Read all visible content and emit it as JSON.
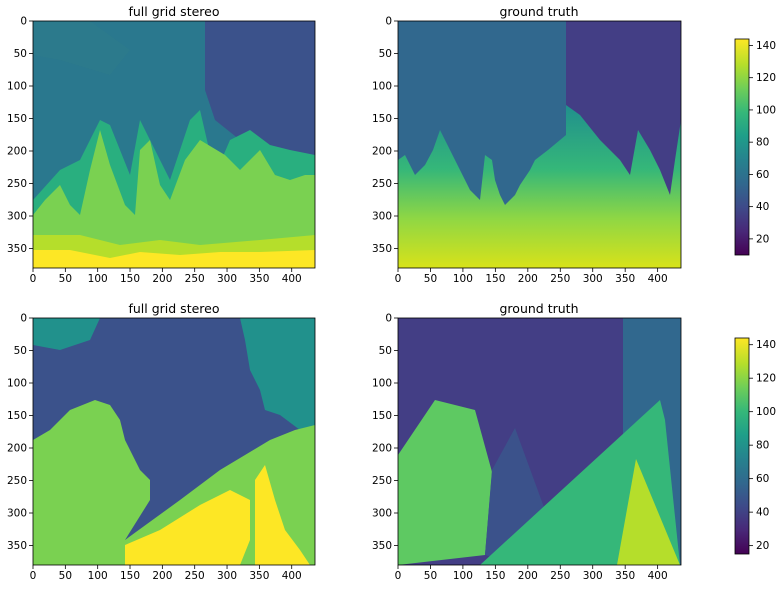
{
  "chart_data": [
    {
      "type": "heatmap",
      "title": "full grid stereo",
      "x_ticks": [
        0,
        50,
        100,
        150,
        200,
        250,
        300,
        350,
        400
      ],
      "y_ticks": [
        0,
        50,
        100,
        150,
        200,
        250,
        300,
        350
      ],
      "xlim": [
        0,
        436
      ],
      "ylim": [
        380,
        0
      ],
      "colormap": "viridis",
      "value_range": [
        10,
        144
      ],
      "regions": [
        {
          "label": "sky-left",
          "value": 75
        },
        {
          "label": "sky-right",
          "value": 45
        },
        {
          "label": "mountains",
          "value": 110
        },
        {
          "label": "foreground",
          "value": 140
        }
      ]
    },
    {
      "type": "heatmap",
      "title": "ground truth",
      "x_ticks": [
        0,
        50,
        100,
        150,
        200,
        250,
        300,
        350,
        400
      ],
      "y_ticks": [
        0,
        50,
        100,
        150,
        200,
        250,
        300,
        350
      ],
      "xlim": [
        0,
        436
      ],
      "ylim": [
        380,
        0
      ],
      "colormap": "viridis",
      "value_range": [
        10,
        144
      ],
      "regions": [
        {
          "label": "background-left",
          "value": 60
        },
        {
          "label": "background-right",
          "value": 40
        },
        {
          "label": "ground-gradient",
          "value_top": 60,
          "value_bottom": 135
        }
      ]
    },
    {
      "type": "heatmap",
      "title": "full grid stereo",
      "x_ticks": [
        0,
        50,
        100,
        150,
        200,
        250,
        300,
        350,
        400
      ],
      "y_ticks": [
        0,
        50,
        100,
        150,
        200,
        250,
        300,
        350
      ],
      "xlim": [
        0,
        436
      ],
      "ylim": [
        380,
        0
      ],
      "colormap": "viridis",
      "value_range": [
        15,
        144
      ],
      "regions": [
        {
          "label": "background",
          "value": 50
        },
        {
          "label": "left-slope",
          "value": 110
        },
        {
          "label": "center-slope",
          "value": 110
        },
        {
          "label": "foreground-wedge",
          "value": 140
        }
      ]
    },
    {
      "type": "heatmap",
      "title": "ground truth",
      "x_ticks": [
        0,
        50,
        100,
        150,
        200,
        250,
        300,
        350,
        400
      ],
      "y_ticks": [
        0,
        50,
        100,
        150,
        200,
        250,
        300,
        350
      ],
      "xlim": [
        0,
        436
      ],
      "ylim": [
        380,
        0
      ],
      "colormap": "viridis",
      "value_range": [
        15,
        144
      ],
      "regions": [
        {
          "label": "background",
          "value": 45
        },
        {
          "label": "left-plane",
          "value": 105
        },
        {
          "label": "middle-plane",
          "value": 60
        },
        {
          "label": "diagonal-plane",
          "value": 100
        },
        {
          "label": "right-triangle",
          "value": 125
        }
      ]
    }
  ],
  "colorbars": [
    {
      "ticks": [
        20,
        40,
        60,
        80,
        100,
        120,
        140
      ],
      "range": [
        10,
        144
      ]
    },
    {
      "ticks": [
        20,
        40,
        60,
        80,
        100,
        120,
        140
      ],
      "range": [
        15,
        144
      ]
    }
  ],
  "colors": {
    "viridis": [
      "#440154",
      "#482878",
      "#3e4a89",
      "#31688e",
      "#26828e",
      "#1f9e89",
      "#35b779",
      "#6ece58",
      "#b5de2b",
      "#fde725"
    ]
  }
}
